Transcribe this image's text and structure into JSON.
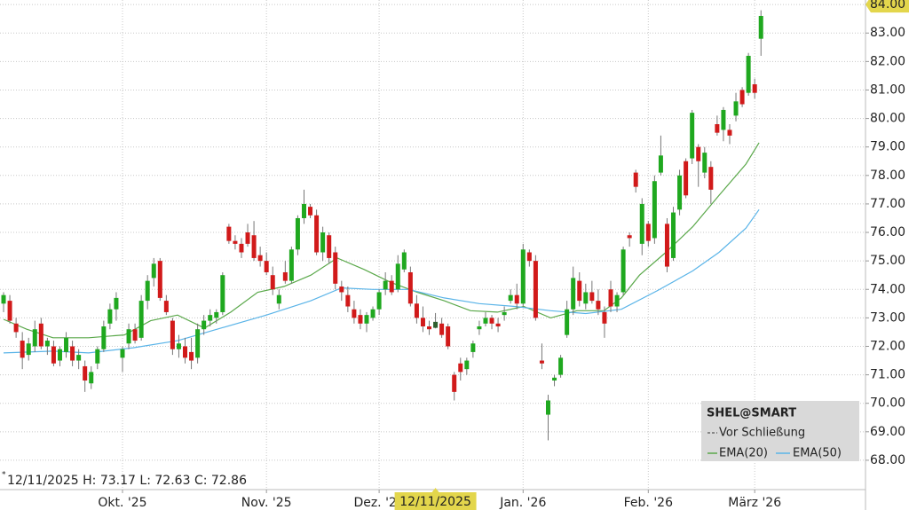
{
  "chart_data": {
    "type": "candlestick",
    "open": [
      73.5,
      73.6,
      72.8,
      72.2,
      71.7,
      72.0,
      72.8,
      72.0,
      72.0,
      71.5,
      71.8,
      72.0,
      71.5,
      71.3,
      70.7,
      71.4,
      71.9,
      72.8,
      73.3,
      71.6,
      72.1,
      72.6,
      72.3,
      73.6,
      74.4,
      75.0,
      73.6,
      72.9,
      71.9,
      72.0,
      71.8,
      71.6,
      72.6,
      72.9,
      73.0,
      73.2,
      76.2,
      75.7,
      75.6,
      76.0,
      75.9,
      75.2,
      75.0,
      74.5,
      73.5,
      74.6,
      74.3,
      75.4,
      76.5,
      76.9,
      76.6,
      75.3,
      75.9,
      75.3,
      74.1,
      73.8,
      73.3,
      73.1,
      72.8,
      73.0,
      73.3,
      74.0,
      74.3,
      74.0,
      74.7,
      74.6,
      73.5,
      73.0,
      72.7,
      72.65,
      72.8,
      72.7,
      71.0,
      71.4,
      71.2,
      71.8,
      72.6,
      72.8,
      73.0,
      72.8,
      73.1,
      73.6,
      73.8,
      73.5,
      75.3,
      75.0,
      71.5,
      69.6,
      70.8,
      71.0,
      72.4,
      73.3,
      74.3,
      73.5,
      73.9,
      73.6,
      73.2,
      74.0,
      73.4,
      73.9,
      75.9,
      78.1,
      75.6,
      76.3,
      75.8,
      78.1,
      76.3,
      75.1,
      76.8,
      78.5,
      78.6,
      79.0,
      78.1,
      78.3,
      79.8,
      79.6,
      79.6,
      80.1,
      81.0,
      80.9,
      81.2,
      82.8
    ],
    "high": [
      73.9,
      73.8,
      73.0,
      72.5,
      72.3,
      72.9,
      73.0,
      72.3,
      72.2,
      72.0,
      72.5,
      72.2,
      71.9,
      71.5,
      71.3,
      72.0,
      72.9,
      73.5,
      73.9,
      72.0,
      72.8,
      72.8,
      73.8,
      74.5,
      75.1,
      75.1,
      73.8,
      73.0,
      72.4,
      72.3,
      72.3,
      72.8,
      73.1,
      73.3,
      73.3,
      74.6,
      76.3,
      75.9,
      75.8,
      76.3,
      76.4,
      75.5,
      75.3,
      74.8,
      74.0,
      75.0,
      75.5,
      76.6,
      77.5,
      77.0,
      76.8,
      76.2,
      76.0,
      75.5,
      74.3,
      74.1,
      73.6,
      73.3,
      73.2,
      73.4,
      74.0,
      74.6,
      74.5,
      75.2,
      75.4,
      74.8,
      73.8,
      73.4,
      72.9,
      73.17,
      73.0,
      72.8,
      71.1,
      71.6,
      71.6,
      72.2,
      72.9,
      73.2,
      73.1,
      73.0,
      73.4,
      74.0,
      74.2,
      75.6,
      75.4,
      75.2,
      72.1,
      70.3,
      71.0,
      71.7,
      73.6,
      74.8,
      74.6,
      74.2,
      74.3,
      74.0,
      73.4,
      74.3,
      73.9,
      75.5,
      76.0,
      78.2,
      77.2,
      76.4,
      78.0,
      79.4,
      76.5,
      76.9,
      78.2,
      78.6,
      80.3,
      79.1,
      79.0,
      78.5,
      80.1,
      80.4,
      79.8,
      80.9,
      81.1,
      82.3,
      81.4,
      83.8
    ],
    "low": [
      73.2,
      72.8,
      72.3,
      71.2,
      71.5,
      71.8,
      71.9,
      71.7,
      71.3,
      71.3,
      71.6,
      71.3,
      71.2,
      70.4,
      70.5,
      71.2,
      71.8,
      72.6,
      72.9,
      71.1,
      71.9,
      72.1,
      72.2,
      73.3,
      74.1,
      73.6,
      73.1,
      71.7,
      71.6,
      71.4,
      71.2,
      71.4,
      72.4,
      72.7,
      72.8,
      73.1,
      75.6,
      75.4,
      75.1,
      75.5,
      75.0,
      74.8,
      74.5,
      73.8,
      73.3,
      74.2,
      74.2,
      75.2,
      76.3,
      76.5,
      75.2,
      75.0,
      74.9,
      74.0,
      73.6,
      73.2,
      72.8,
      72.6,
      72.5,
      72.9,
      73.1,
      73.8,
      73.8,
      73.9,
      74.6,
      73.4,
      72.8,
      72.5,
      72.4,
      72.63,
      72.3,
      71.9,
      70.1,
      70.8,
      71.0,
      71.6,
      72.4,
      72.7,
      72.6,
      72.5,
      72.9,
      73.5,
      73.3,
      73.4,
      74.8,
      72.9,
      71.2,
      68.7,
      70.6,
      70.9,
      72.3,
      73.1,
      73.4,
      73.3,
      73.5,
      73.1,
      72.3,
      73.2,
      73.2,
      73.8,
      75.5,
      77.4,
      75.2,
      75.5,
      75.6,
      78.0,
      74.6,
      75.0,
      76.6,
      77.2,
      78.4,
      77.6,
      77.9,
      77.0,
      79.4,
      79.2,
      79.1,
      79.9,
      80.4,
      80.8,
      80.7,
      82.2
    ],
    "close": [
      73.8,
      72.9,
      72.5,
      71.6,
      72.1,
      72.6,
      72.0,
      72.2,
      71.4,
      71.9,
      72.3,
      71.5,
      71.7,
      70.8,
      71.1,
      71.9,
      72.7,
      73.3,
      73.7,
      71.9,
      72.6,
      72.2,
      73.6,
      74.3,
      74.9,
      73.7,
      73.2,
      71.9,
      72.1,
      71.6,
      71.5,
      72.6,
      72.9,
      73.1,
      73.2,
      74.5,
      75.7,
      75.6,
      75.3,
      75.6,
      75.1,
      75.0,
      74.6,
      74.0,
      73.8,
      74.3,
      75.4,
      76.5,
      77.0,
      76.6,
      75.3,
      76.0,
      75.1,
      74.2,
      73.9,
      73.4,
      73.0,
      72.8,
      73.1,
      73.3,
      73.9,
      74.3,
      73.9,
      74.9,
      75.3,
      73.5,
      73.0,
      72.7,
      72.6,
      72.86,
      72.4,
      72.0,
      70.4,
      71.1,
      71.5,
      72.1,
      72.7,
      73.0,
      72.8,
      72.7,
      73.2,
      73.8,
      73.5,
      75.4,
      75.0,
      73.0,
      71.4,
      70.1,
      70.9,
      71.6,
      73.3,
      74.4,
      73.6,
      73.9,
      73.6,
      73.3,
      72.8,
      73.4,
      73.8,
      75.4,
      75.8,
      77.6,
      77.0,
      75.7,
      77.8,
      78.7,
      74.8,
      76.7,
      78.0,
      77.3,
      80.2,
      78.5,
      78.8,
      77.5,
      79.5,
      80.3,
      79.4,
      80.6,
      80.5,
      82.2,
      80.9,
      83.6
    ],
    "up_color": "#1fa81f",
    "down_color": "#d11a1a",
    "wick_color": "#777777",
    "overlays": [
      {
        "name": "EMA(20)",
        "color": "#5aa84a",
        "x": [
          0,
          3.7,
          7.9,
          13.6,
          19.3,
          23.5,
          27.8,
          32.1,
          36.3,
          40.6,
          44.8,
          49.1,
          53.3,
          57.6,
          61.8,
          66.1,
          70.4,
          74.6,
          78.9,
          83.1,
          87.4,
          91.6,
          95.9,
          98.7,
          101.6,
          105.8,
          110.1,
          114.3,
          118.6,
          120.7
        ],
        "values": [
          72.95,
          72.6,
          72.3,
          72.3,
          72.4,
          72.9,
          73.1,
          72.64,
          73.2,
          73.9,
          74.1,
          74.5,
          75.1,
          74.7,
          74.25,
          73.9,
          73.6,
          73.25,
          73.2,
          73.4,
          73.0,
          73.25,
          73.25,
          73.7,
          74.5,
          75.3,
          76.2,
          77.3,
          78.4,
          79.15
        ]
      },
      {
        "name": "EMA(50)",
        "color": "#5ab4e8",
        "x": [
          0,
          7.9,
          13.6,
          20.7,
          27.8,
          34.9,
          42,
          49.1,
          54,
          59,
          64.7,
          70.4,
          76,
          81.7,
          87.4,
          93,
          98.7,
          104.4,
          110.1,
          114.3,
          118.6,
          120.7
        ],
        "values": [
          71.77,
          71.83,
          71.77,
          71.95,
          72.2,
          72.65,
          73.1,
          73.6,
          74.05,
          74.0,
          74.0,
          73.7,
          73.5,
          73.4,
          73.25,
          73.15,
          73.3,
          73.95,
          74.65,
          75.3,
          76.15,
          76.8
        ]
      }
    ],
    "xlim": [
      -0.57,
      137.7
    ],
    "xticks": [
      {
        "value": 19,
        "label": "Okt. '25"
      },
      {
        "value": 42,
        "label": "Nov. '25"
      },
      {
        "value": 60,
        "label": "Dez. '25"
      },
      {
        "value": 83,
        "label": "Jan. '26"
      },
      {
        "value": 103,
        "label": "Feb. '26"
      },
      {
        "value": 120,
        "label": "März '26"
      }
    ],
    "ylim": [
      66.97,
      84.16
    ],
    "yticks": [
      {
        "value": 68,
        "label": "68.00"
      },
      {
        "value": 69,
        "label": "69.00"
      },
      {
        "value": 70,
        "label": "70.00"
      },
      {
        "value": 71,
        "label": "71.00"
      },
      {
        "value": 72,
        "label": "72.00"
      },
      {
        "value": 73,
        "label": "73.00"
      },
      {
        "value": 74,
        "label": "74.00"
      },
      {
        "value": 75,
        "label": "75.00"
      },
      {
        "value": 76,
        "label": "76.00"
      },
      {
        "value": 77,
        "label": "77.00"
      },
      {
        "value": 78,
        "label": "78.00"
      },
      {
        "value": 79,
        "label": "79.00"
      },
      {
        "value": 80,
        "label": "80.00"
      },
      {
        "value": 81,
        "label": "81.00"
      },
      {
        "value": 82,
        "label": "82.00"
      },
      {
        "value": 83,
        "label": "83.00"
      },
      {
        "value": 84,
        "label": "84.00"
      }
    ],
    "top_tick_highlight": "#e3d64c",
    "grid": true,
    "legend": {
      "title": "SHEL@SMART",
      "previous_close": "Vor Schließung"
    },
    "hover": {
      "date": "12/11/2025",
      "high_label": "H:",
      "low_label": "L:",
      "close_label": "C:",
      "color": "#2f5f2f",
      "date_color": "#e3d64c"
    }
  }
}
